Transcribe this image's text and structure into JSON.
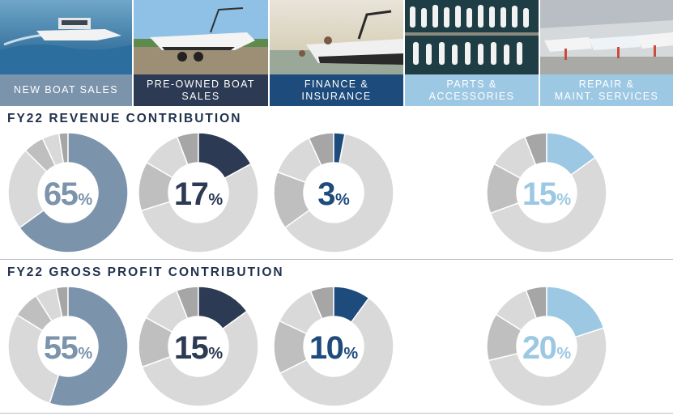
{
  "segments": [
    {
      "label": "NEW BOAT SALES",
      "label_bg": "#7b93ab",
      "scene": "boat-on-water"
    },
    {
      "label": "PRE-OWNED BOAT\nSALES",
      "label_bg": "#2d3a53",
      "scene": "boat-on-trailer"
    },
    {
      "label": "FINANCE &\nINSURANCE",
      "label_bg": "#1d4b7c",
      "scene": "people-on-boat"
    },
    {
      "label": "PARTS &\nACCESSORIES",
      "label_bg": "#9dc8e3",
      "scene": "marina-aerial"
    },
    {
      "label": "REPAIR &\nMAINT. SERVICES",
      "label_bg": "#9dc8e3",
      "scene": "service-warehouse"
    }
  ],
  "sections": {
    "revenue_title": "FY22 REVENUE CONTRIBUTION",
    "profit_title": "FY22 GROSS PROFIT CONTRIBUTION"
  },
  "colors": {
    "new": "#7b93ab",
    "pre_owned": "#2d3a53",
    "finance": "#1d4b7c",
    "parts_service": "#9dc8e3",
    "other_light": "#d9d9d9",
    "other_mid": "#bfbfbf",
    "other_dark": "#a6a6a6"
  },
  "chart_data": [
    {
      "type": "pie",
      "title": "FY22 REVENUE CONTRIBUTION",
      "donut": true,
      "categories": [
        "New Boat Sales",
        "Pre-Owned Boat Sales",
        "Finance & Insurance",
        "Parts & Accessories / Repair & Maint. Services"
      ],
      "values": [
        65,
        17,
        3,
        15
      ],
      "display_labels": [
        "65",
        "17",
        "3",
        "15"
      ],
      "unit": "%"
    },
    {
      "type": "pie",
      "title": "FY22 GROSS PROFIT CONTRIBUTION",
      "donut": true,
      "categories": [
        "New Boat Sales",
        "Pre-Owned Boat Sales",
        "Finance & Insurance",
        "Parts & Accessories / Repair & Maint. Services"
      ],
      "values": [
        55,
        15,
        10,
        20
      ],
      "display_labels": [
        "55",
        "15",
        "10",
        "20"
      ],
      "unit": "%"
    }
  ]
}
